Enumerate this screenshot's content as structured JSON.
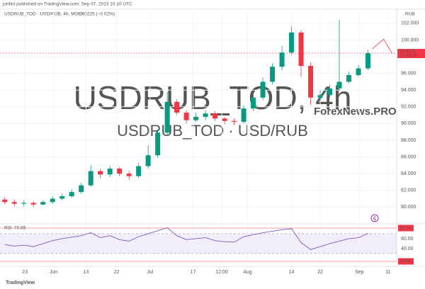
{
  "header": "jonfint published on TradingView.com, Sep 07, 2023 10:10 UTC",
  "footer": "TradingView",
  "chart_data": {
    "type": "candlestick",
    "title": "USDRUB_TOD · USD/RUB, 4h, MOEX",
    "change": "−0.0225 (−0.02%)",
    "watermark": [
      "USDRUB_TOD, 4h",
      "USDRUB_TOD · USD/RUB"
    ],
    "brand": "ForexNews.PRO",
    "currency": "RUB",
    "up_color": "#089981",
    "down_color": "#f23645",
    "open": [
      80.9,
      80.6,
      80.4,
      80.5,
      80.3,
      80.6,
      81.0,
      81.3,
      81.8,
      82.6,
      84.3,
      83.9,
      84.6,
      84.0,
      83.7,
      84.9,
      86.2,
      88.9,
      92.6,
      91.3,
      90.4,
      90.8,
      91.2,
      90.6,
      90.3,
      90.2,
      91.8,
      93.1,
      95.0,
      96.8,
      98.5,
      100.9,
      96.9,
      93.1,
      93.4,
      94.2,
      95.0,
      95.8,
      96.6
    ],
    "high": [
      81.2,
      80.9,
      80.8,
      80.7,
      80.8,
      81.3,
      81.6,
      82.1,
      82.9,
      85.0,
      84.6,
      84.9,
      84.8,
      84.3,
      85.3,
      87.4,
      89.3,
      93.8,
      92.9,
      91.6,
      91.3,
      91.6,
      91.5,
      90.8,
      90.6,
      92.2,
      93.5,
      95.5,
      97.2,
      99.3,
      101.6,
      101.2,
      97.3,
      94.0,
      94.6,
      102.4,
      96.2,
      97.0,
      98.8
    ],
    "low": [
      80.3,
      80.1,
      80.1,
      80.0,
      80.2,
      80.4,
      80.8,
      81.1,
      81.6,
      82.4,
      83.5,
      83.6,
      83.7,
      83.3,
      83.5,
      84.6,
      85.9,
      88.6,
      91.0,
      90.0,
      90.2,
      90.4,
      90.3,
      89.9,
      89.8,
      90.0,
      91.5,
      92.8,
      94.7,
      96.4,
      98.2,
      95.6,
      92.2,
      92.7,
      93.1,
      93.9,
      94.8,
      95.6,
      96.4
    ],
    "close": [
      80.6,
      80.4,
      80.5,
      80.3,
      80.6,
      81.0,
      81.3,
      81.8,
      82.6,
      84.3,
      83.9,
      84.6,
      84.0,
      83.7,
      84.9,
      86.2,
      88.9,
      92.6,
      91.3,
      90.4,
      90.8,
      91.2,
      90.6,
      90.3,
      90.2,
      91.8,
      93.1,
      95.0,
      96.8,
      98.5,
      100.9,
      96.9,
      93.1,
      93.4,
      94.2,
      95.0,
      95.8,
      96.6,
      98.4225
    ],
    "ylim": [
      78.5,
      103.6
    ],
    "yticks": [
      {
        "value": 80,
        "label": "80.000"
      },
      {
        "value": 82,
        "label": "82.000"
      },
      {
        "value": 84,
        "label": "84.000"
      },
      {
        "value": 86,
        "label": "86.000"
      },
      {
        "value": 88,
        "label": "88.000"
      },
      {
        "value": 90,
        "label": "90.000"
      },
      {
        "value": 92,
        "label": "92.000"
      },
      {
        "value": 94,
        "label": "94.000"
      },
      {
        "value": 96,
        "label": "96.000"
      },
      {
        "value": 98,
        "label": "98.000"
      },
      {
        "value": 100,
        "label": "100.000"
      },
      {
        "value": 102,
        "label": "102.000"
      }
    ],
    "xlim": [
      -0.5,
      41
    ],
    "xticks": [
      {
        "value": 2.1,
        "label": "23"
      },
      {
        "value": 5.1,
        "label": "Jun"
      },
      {
        "value": 8.5,
        "label": "13"
      },
      {
        "value": 11.7,
        "label": "22"
      },
      {
        "value": 15.2,
        "label": "Jul"
      },
      {
        "value": 19.7,
        "label": "17"
      },
      {
        "value": 22.7,
        "label": "12:00"
      },
      {
        "value": 25.4,
        "label": "Aug"
      },
      {
        "value": 30,
        "label": "14"
      },
      {
        "value": 33,
        "label": "22"
      },
      {
        "value": 37.1,
        "label": "Sep"
      },
      {
        "value": 40.1,
        "label": "11"
      }
    ],
    "last_price": 98.4225,
    "countdown": "01:49:15",
    "indicator": {
      "name": "RSI",
      "color": "#7e57c2",
      "values": [
        48,
        45,
        47,
        44,
        50,
        56,
        60,
        63,
        66,
        72,
        62,
        66,
        58,
        55,
        64,
        70,
        76,
        82,
        66,
        58,
        60,
        62,
        56,
        54,
        53,
        64,
        68,
        72,
        75,
        78,
        80,
        52,
        38,
        44,
        50,
        55,
        60,
        62,
        70.65
      ],
      "ylim": [
        10,
        87
      ],
      "yticks": [
        {
          "value": 60,
          "label": "60.00"
        },
        {
          "value": 40,
          "label": "40.00"
        }
      ],
      "bands": [
        70,
        30
      ],
      "scale_marks": [
        "92.13",
        "23.60"
      ]
    }
  }
}
